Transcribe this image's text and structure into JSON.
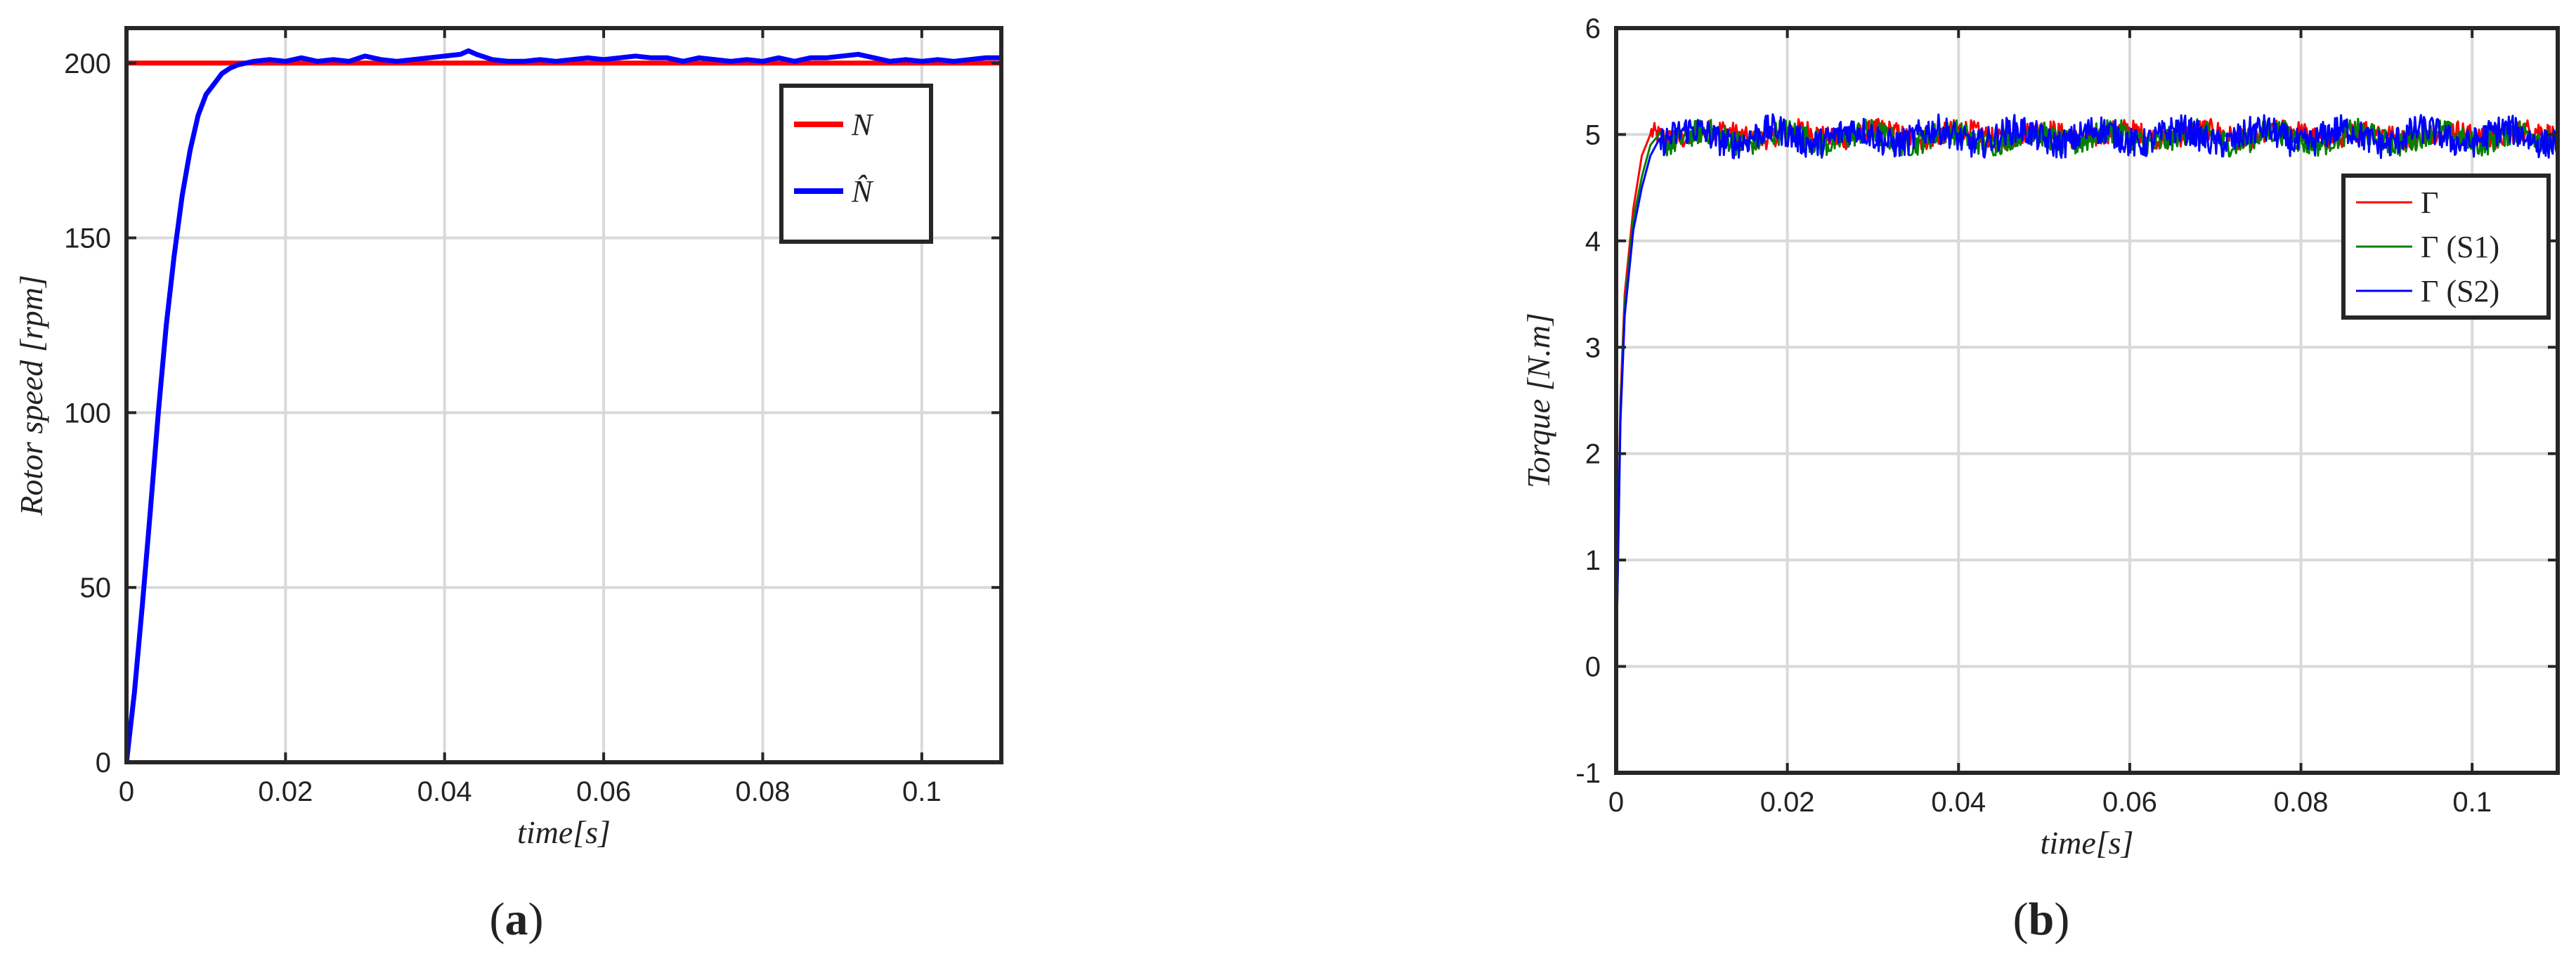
{
  "chart_data": [
    {
      "type": "line",
      "panel_label": "a",
      "xlabel": "time[s]",
      "ylabel": "Rotor  speed [rpm]",
      "xlim": [
        0,
        0.11
      ],
      "ylim": [
        0,
        210
      ],
      "xticks": [
        0,
        0.02,
        0.04,
        0.06,
        0.08,
        0.1
      ],
      "xtick_labels": [
        "0",
        "0.02",
        "0.04",
        "0.06",
        "0.08",
        "0.1"
      ],
      "yticks": [
        0,
        50,
        100,
        150,
        200
      ],
      "ytick_labels": [
        "0",
        "50",
        "100",
        "150",
        "200"
      ],
      "grid": true,
      "legend_position": "top-right",
      "series": [
        {
          "name": "N",
          "color": "#ff0000",
          "x": [
            0,
            0.11
          ],
          "y": [
            200,
            200
          ]
        },
        {
          "name": "N̂",
          "color": "#0000ff",
          "x": [
            0,
            0.001,
            0.002,
            0.003,
            0.004,
            0.005,
            0.006,
            0.007,
            0.008,
            0.009,
            0.01,
            0.011,
            0.012,
            0.013,
            0.014,
            0.015,
            0.016,
            0.018,
            0.02,
            0.022,
            0.024,
            0.026,
            0.028,
            0.03,
            0.032,
            0.034,
            0.036,
            0.038,
            0.04,
            0.042,
            0.043,
            0.044,
            0.046,
            0.048,
            0.05,
            0.052,
            0.054,
            0.056,
            0.058,
            0.06,
            0.062,
            0.064,
            0.066,
            0.068,
            0.07,
            0.072,
            0.074,
            0.076,
            0.078,
            0.08,
            0.082,
            0.084,
            0.086,
            0.088,
            0.09,
            0.092,
            0.094,
            0.096,
            0.098,
            0.1,
            0.102,
            0.104,
            0.106,
            0.108,
            0.11
          ],
          "y": [
            0,
            20,
            45,
            72,
            100,
            125,
            145,
            162,
            175,
            185,
            191,
            194,
            197,
            198.5,
            199.5,
            200,
            200.5,
            201,
            200.5,
            201.5,
            200.5,
            201,
            200.5,
            202,
            201,
            200.5,
            201,
            201.5,
            202,
            202.5,
            203.5,
            202.5,
            201,
            200.5,
            200.5,
            201,
            200.5,
            201,
            201.5,
            201,
            201.5,
            202,
            201.5,
            201.5,
            200.5,
            201.5,
            201,
            200.5,
            201,
            200.5,
            201.5,
            200.5,
            201.5,
            201.5,
            202,
            202.5,
            201.5,
            200.5,
            201,
            200.5,
            201,
            200.5,
            201,
            201.5,
            201.5
          ]
        }
      ],
      "legend": [
        "N",
        "N̂"
      ]
    },
    {
      "type": "line",
      "panel_label": "b",
      "xlabel": "time[s]",
      "ylabel": "Torque [N.m]",
      "xlim": [
        0,
        0.11
      ],
      "ylim": [
        -1,
        6
      ],
      "xticks": [
        0,
        0.02,
        0.04,
        0.06,
        0.08,
        0.1
      ],
      "xtick_labels": [
        "0",
        "0.02",
        "0.04",
        "0.06",
        "0.08",
        "0.1"
      ],
      "yticks": [
        -1,
        0,
        1,
        2,
        3,
        4,
        5,
        6
      ],
      "ytick_labels": [
        "-1",
        "0",
        "1",
        "2",
        "3",
        "4",
        "5",
        "6"
      ],
      "grid": true,
      "legend_position": "top-right",
      "series": [
        {
          "name": "Γ",
          "color": "#ff0000",
          "steady_value": 5.0,
          "ripple_amplitude": 0.1,
          "rise_points": [
            [
              0,
              0
            ],
            [
              0.0005,
              2.5
            ],
            [
              0.001,
              3.5
            ],
            [
              0.002,
              4.3
            ],
            [
              0.003,
              4.8
            ],
            [
              0.004,
              5.0
            ]
          ]
        },
        {
          "name": "Γ  (S1)",
          "color": "#008000",
          "steady_value": 4.97,
          "ripple_amplitude": 0.12,
          "rise_points": [
            [
              0,
              0
            ],
            [
              0.0005,
              2.4
            ],
            [
              0.001,
              3.4
            ],
            [
              0.002,
              4.2
            ],
            [
              0.003,
              4.6
            ],
            [
              0.004,
              4.9
            ],
            [
              0.005,
              5.0
            ]
          ]
        },
        {
          "name": "Γ  (S2)",
          "color": "#0000ff",
          "steady_value": 4.98,
          "ripple_amplitude": 0.14,
          "rise_points": [
            [
              0,
              0
            ],
            [
              0.0005,
              2.3
            ],
            [
              0.001,
              3.3
            ],
            [
              0.002,
              4.1
            ],
            [
              0.003,
              4.5
            ],
            [
              0.004,
              4.8
            ],
            [
              0.005,
              4.95
            ]
          ]
        }
      ],
      "legend": [
        "Γ",
        "Γ  (S1)",
        "Γ  (S2)"
      ]
    }
  ]
}
